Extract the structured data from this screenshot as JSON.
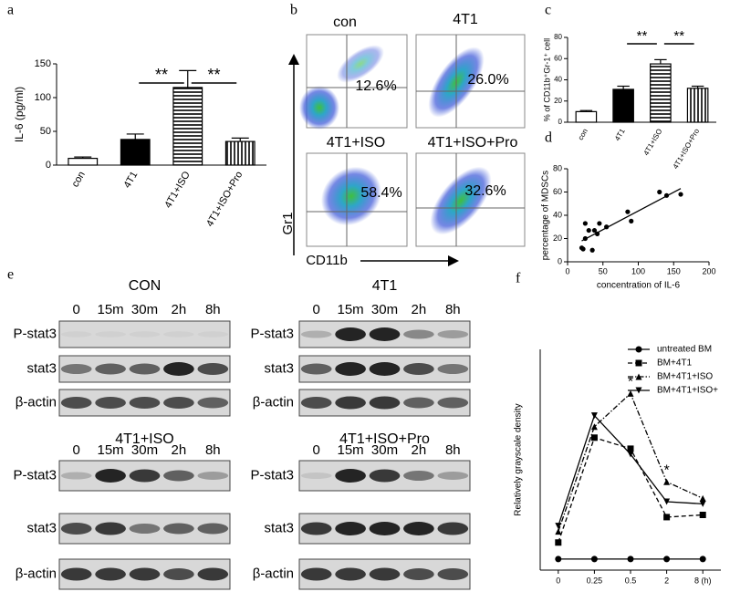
{
  "panel_labels": [
    "a",
    "b",
    "c",
    "d",
    "e",
    "f"
  ],
  "chart_data": [
    {
      "type": "bar",
      "ylabel": "IL-6 (pg/ml)",
      "categories": [
        "con",
        "4T1",
        "4T1+ISO",
        "4T1+ISO+Pro"
      ],
      "values": [
        10,
        38,
        115,
        35
      ],
      "errors": [
        2,
        8,
        25,
        5
      ],
      "fills": [
        "white",
        "black",
        "hstripe",
        "vstripe"
      ],
      "ylim": [
        0,
        150
      ],
      "yticks": [
        0,
        50,
        100,
        150
      ],
      "annotations": [
        "**",
        "**"
      ]
    },
    {
      "type": "bar",
      "ylabel": "% of CD11b⁺Gr-1⁺ cell",
      "categories": [
        "con",
        "4T1",
        "4T1+ISO",
        "4T1+ISO+Pro"
      ],
      "values": [
        10,
        31,
        55,
        32
      ],
      "errors": [
        1,
        3,
        4,
        2
      ],
      "fills": [
        "white",
        "black",
        "hstripe",
        "vstripe"
      ],
      "ylim": [
        0,
        80
      ],
      "yticks": [
        0,
        20,
        40,
        60,
        80
      ],
      "annotations": [
        "**",
        "**"
      ]
    },
    {
      "type": "scatter",
      "xlabel": "concentration of IL-6",
      "ylabel": "percentage of MDSCs",
      "x": [
        20,
        22,
        25,
        25,
        30,
        35,
        38,
        42,
        45,
        55,
        85,
        90,
        130,
        140,
        160
      ],
      "y": [
        12,
        11,
        20,
        33,
        27,
        10,
        27,
        24,
        33,
        30,
        43,
        35,
        60,
        57,
        58
      ],
      "trendline": {
        "x": [
          20,
          160
        ],
        "y": [
          18,
          63
        ]
      },
      "color": "#000000",
      "xlim": [
        0,
        200
      ],
      "xticks": [
        0,
        50,
        100,
        150,
        200
      ],
      "ylim": [
        0,
        80
      ],
      "yticks": [
        0,
        20,
        40,
        60,
        80
      ]
    },
    {
      "type": "line",
      "ylabel": "Relatively grayscale density",
      "categories": [
        "0",
        "0.25",
        "0.5",
        "2",
        "8 (h)"
      ],
      "series": [
        {
          "name": "untreated  BM",
          "color": "#000000",
          "marker": "circle",
          "dash": "solid",
          "values": [
            0,
            0,
            0,
            0,
            0
          ]
        },
        {
          "name": "BM+4T1",
          "color": "#000000",
          "marker": "square",
          "dash": "dashed",
          "values": [
            0.15,
            1.1,
            1.0,
            0.38,
            0.4
          ]
        },
        {
          "name": "BM+4T1+ISO",
          "color": "#000000",
          "marker": "triangle-up",
          "dash": "dashdot",
          "values": [
            0.25,
            1.2,
            1.5,
            0.7,
            0.55
          ]
        },
        {
          "name": "BM+4T1+ISO+",
          "color": "#000000",
          "marker": "triangle-down",
          "dash": "solid",
          "values": [
            0.3,
            1.3,
            0.95,
            0.52,
            0.5
          ]
        }
      ],
      "ylim": [
        -0.1,
        1.9
      ],
      "annotations": [
        "*",
        "*"
      ]
    }
  ],
  "flow": {
    "axis_y": "Gr1",
    "axis_x": "CD11b",
    "plots": [
      {
        "title": "con",
        "percent": "12.6%"
      },
      {
        "title": "4T1",
        "percent": "26.0%"
      },
      {
        "title": "4T1+ISO",
        "percent": "58.4%"
      },
      {
        "title": "4T1+ISO+Pro",
        "percent": "32.6%"
      }
    ]
  },
  "blots": {
    "groups": [
      "CON",
      "4T1",
      "4T1+ISO",
      "4T1+ISO+Pro"
    ],
    "timepoints": [
      "0",
      "15m",
      "30m",
      "2h",
      "8h"
    ],
    "rows": [
      "P-stat3",
      "stat3",
      "β-actin"
    ]
  }
}
